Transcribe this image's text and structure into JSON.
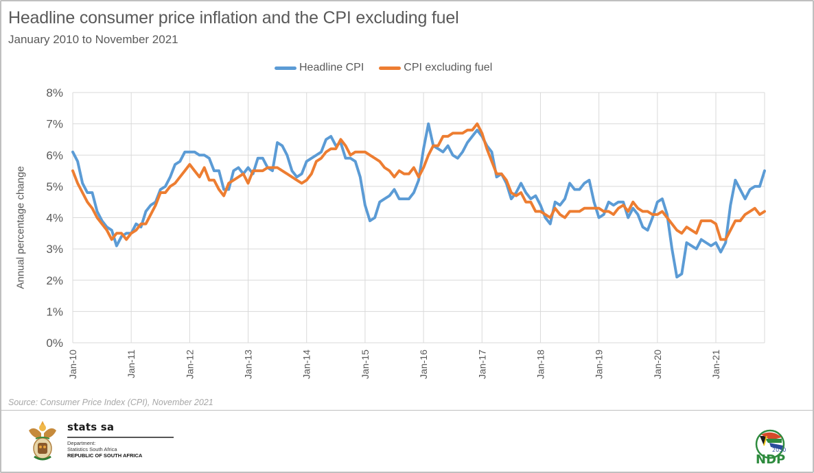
{
  "chart_data": {
    "type": "line",
    "title": "Headline consumer price inflation and the CPI excluding fuel",
    "subtitle": "January 2010 to November 2021",
    "xlabel": "",
    "ylabel": "Annual percentage change",
    "ylim": [
      0,
      8
    ],
    "yticks": [
      "0%",
      "1%",
      "2%",
      "3%",
      "4%",
      "5%",
      "6%",
      "7%",
      "8%"
    ],
    "xtick_labels": [
      "Jan-10",
      "Jan-11",
      "Jan-12",
      "Jan-13",
      "Jan-14",
      "Jan-15",
      "Jan-16",
      "Jan-17",
      "Jan-18",
      "Jan-19",
      "Jan-20",
      "Jan-21"
    ],
    "x_start": "Jan-2010",
    "x_end": "Nov-2021",
    "x_frequency": "monthly",
    "grid": true,
    "legend_position": "top-center",
    "series": [
      {
        "name": "Headline CPI",
        "color": "#5b9bd5",
        "values": [
          6.1,
          5.8,
          5.1,
          4.8,
          4.8,
          4.2,
          3.9,
          3.7,
          3.6,
          3.1,
          3.4,
          3.5,
          3.5,
          3.8,
          3.7,
          4.2,
          4.4,
          4.5,
          4.9,
          5.0,
          5.3,
          5.7,
          5.8,
          6.1,
          6.1,
          6.1,
          6.0,
          6.0,
          5.9,
          5.5,
          5.5,
          4.9,
          4.9,
          5.5,
          5.6,
          5.4,
          5.6,
          5.4,
          5.9,
          5.9,
          5.6,
          5.5,
          6.4,
          6.3,
          6.0,
          5.5,
          5.3,
          5.4,
          5.8,
          5.9,
          6.0,
          6.1,
          6.5,
          6.6,
          6.3,
          6.4,
          5.9,
          5.9,
          5.8,
          5.3,
          4.4,
          3.9,
          4.0,
          4.5,
          4.6,
          4.7,
          4.9,
          4.6,
          4.6,
          4.6,
          4.8,
          5.2,
          6.2,
          7.0,
          6.3,
          6.2,
          6.1,
          6.3,
          6.0,
          5.9,
          6.1,
          6.4,
          6.6,
          6.8,
          6.6,
          6.3,
          6.1,
          5.3,
          5.4,
          5.1,
          4.6,
          4.8,
          5.1,
          4.8,
          4.6,
          4.7,
          4.4,
          4.0,
          3.8,
          4.5,
          4.4,
          4.6,
          5.1,
          4.9,
          4.9,
          5.1,
          5.2,
          4.5,
          4.0,
          4.1,
          4.5,
          4.4,
          4.5,
          4.5,
          4.0,
          4.3,
          4.1,
          3.7,
          3.6,
          4.0,
          4.5,
          4.6,
          4.1,
          3.0,
          2.1,
          2.2,
          3.2,
          3.1,
          3.0,
          3.3,
          3.2,
          3.1,
          3.2,
          2.9,
          3.2,
          4.4,
          5.2,
          4.9,
          4.6,
          4.9,
          5.0,
          5.0,
          5.5
        ]
      },
      {
        "name": "CPI excluding fuel",
        "color": "#ed7d31",
        "values": [
          5.5,
          5.1,
          4.8,
          4.5,
          4.3,
          4.0,
          3.8,
          3.6,
          3.3,
          3.5,
          3.5,
          3.3,
          3.5,
          3.6,
          3.8,
          3.8,
          4.1,
          4.4,
          4.8,
          4.8,
          5.0,
          5.1,
          5.3,
          5.5,
          5.7,
          5.5,
          5.3,
          5.6,
          5.2,
          5.2,
          4.9,
          4.7,
          5.1,
          5.2,
          5.3,
          5.4,
          5.1,
          5.5,
          5.5,
          5.5,
          5.6,
          5.6,
          5.6,
          5.5,
          5.4,
          5.3,
          5.2,
          5.1,
          5.2,
          5.4,
          5.8,
          5.9,
          6.1,
          6.2,
          6.2,
          6.5,
          6.3,
          6.0,
          6.1,
          6.1,
          6.1,
          6.0,
          5.9,
          5.8,
          5.6,
          5.5,
          5.3,
          5.5,
          5.4,
          5.4,
          5.6,
          5.3,
          5.6,
          6.0,
          6.3,
          6.3,
          6.6,
          6.6,
          6.7,
          6.7,
          6.7,
          6.8,
          6.8,
          7.0,
          6.7,
          6.2,
          5.8,
          5.4,
          5.4,
          5.2,
          4.8,
          4.7,
          4.8,
          4.5,
          4.5,
          4.2,
          4.2,
          4.1,
          4.0,
          4.3,
          4.1,
          4.0,
          4.2,
          4.2,
          4.2,
          4.3,
          4.3,
          4.3,
          4.3,
          4.2,
          4.2,
          4.1,
          4.3,
          4.4,
          4.2,
          4.5,
          4.3,
          4.2,
          4.2,
          4.1,
          4.1,
          4.2,
          4.0,
          3.8,
          3.6,
          3.5,
          3.7,
          3.6,
          3.5,
          3.9,
          3.9,
          3.9,
          3.8,
          3.3,
          3.3,
          3.6,
          3.9,
          3.9,
          4.1,
          4.2,
          4.3,
          4.1,
          4.2
        ]
      }
    ]
  },
  "source": "Source: Consumer Price Index (CPI), November 2021",
  "footer": {
    "org_name": "stats sa",
    "dept_label": "Department:",
    "dept_name": "Statistics South Africa",
    "country": "REPUBLIC OF SOUTH AFRICA",
    "ndp_year": "2030",
    "ndp_label": "NDP"
  }
}
